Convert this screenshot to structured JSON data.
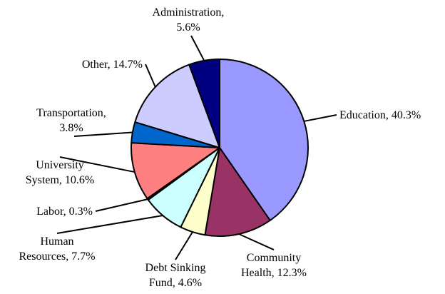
{
  "chart_data": {
    "type": "pie",
    "slices": [
      {
        "label_lines": [
          "Education, 40.3%"
        ],
        "value": 40.3,
        "color": "#9999FF"
      },
      {
        "label_lines": [
          "Community",
          "Health, 12.3%"
        ],
        "value": 12.3,
        "color": "#993366"
      },
      {
        "label_lines": [
          "Debt Sinking",
          "Fund, 4.6%"
        ],
        "value": 4.6,
        "color": "#FFFFCC"
      },
      {
        "label_lines": [
          "Human",
          "Resources, 7.7%"
        ],
        "value": 7.7,
        "color": "#CCFFFF"
      },
      {
        "label_lines": [
          "Labor, 0.3%"
        ],
        "value": 0.3,
        "color": "#660066"
      },
      {
        "label_lines": [
          "University",
          "System, 10.6%"
        ],
        "value": 10.6,
        "color": "#FF8080"
      },
      {
        "label_lines": [
          "Transportation,",
          "3.8%"
        ],
        "value": 3.8,
        "color": "#0066CC"
      },
      {
        "label_lines": [
          "Other, 14.7%"
        ],
        "value": 14.7,
        "color": "#CCCCFF"
      },
      {
        "label_lines": [
          "Administration,",
          "5.6%"
        ],
        "value": 5.6,
        "color": "#000080"
      }
    ]
  }
}
